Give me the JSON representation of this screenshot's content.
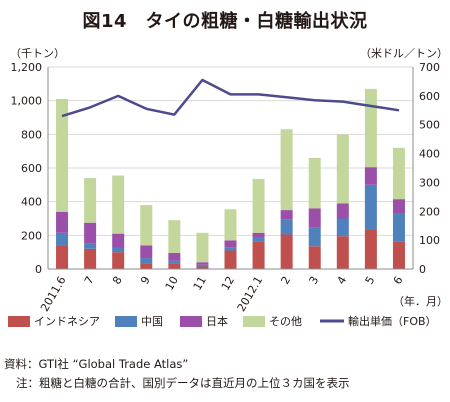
{
  "chart_data": {
    "type": "bar",
    "title": "図14　タイの粗糖・白糖輸出状況",
    "y_left_label": "（千トン）",
    "y_right_label": "（米ドル／トン）",
    "x_label": "（年．月）",
    "categories": [
      "2011.6",
      "7",
      "8",
      "9",
      "10",
      "11",
      "12",
      "2012.1",
      "2",
      "3",
      "4",
      "5",
      "6"
    ],
    "y_left_lim": [
      0,
      1200
    ],
    "y_left_ticks": [
      "0",
      "200",
      "400",
      "600",
      "800",
      "1,000",
      "1,200"
    ],
    "y_right_lim": [
      0,
      700
    ],
    "y_right_ticks": [
      "0",
      "100",
      "200",
      "300",
      "400",
      "500",
      "600",
      "700"
    ],
    "series": [
      {
        "name": "インドネシア",
        "type": "bar",
        "axis": "left",
        "color": "#c0504d",
        "values": [
          140,
          120,
          100,
          35,
          30,
          15,
          110,
          165,
          205,
          135,
          195,
          235,
          165
        ]
      },
      {
        "name": "中国",
        "type": "bar",
        "axis": "left",
        "color": "#4f81bd",
        "values": [
          75,
          30,
          25,
          30,
          20,
          10,
          20,
          25,
          90,
          110,
          105,
          265,
          165
        ]
      },
      {
        "name": "日本",
        "type": "bar",
        "axis": "left",
        "color": "#9b4fa9",
        "values": [
          125,
          125,
          85,
          75,
          45,
          15,
          40,
          25,
          55,
          115,
          90,
          105,
          85
        ]
      },
      {
        "name": "その他",
        "type": "bar",
        "axis": "left",
        "color": "#c3d69b",
        "values": [
          670,
          265,
          345,
          240,
          195,
          175,
          185,
          320,
          480,
          300,
          410,
          465,
          305
        ]
      },
      {
        "name": "輸出単価（FOB）",
        "type": "line",
        "axis": "right",
        "color": "#4d4a8e",
        "values": [
          530,
          560,
          600,
          555,
          535,
          655,
          605,
          605,
          595,
          585,
          580,
          565,
          550
        ]
      }
    ],
    "grid": true,
    "legend_position": "bottom"
  },
  "legend": [
    {
      "label": "インドネシア",
      "color": "#c0504d",
      "kind": "box"
    },
    {
      "label": "中国",
      "color": "#4f81bd",
      "kind": "box"
    },
    {
      "label": "日本",
      "color": "#9b4fa9",
      "kind": "box"
    },
    {
      "label": "その他",
      "color": "#c3d69b",
      "kind": "box"
    },
    {
      "label": "輸出単価（FOB）",
      "color": "#4d4a8e",
      "kind": "line"
    }
  ],
  "notes": {
    "source": "資料：GTI社 “Global Trade Atlas”",
    "note": "注：粗糖と白糖の合計、国別データは直近月の上位３カ国を表示"
  }
}
